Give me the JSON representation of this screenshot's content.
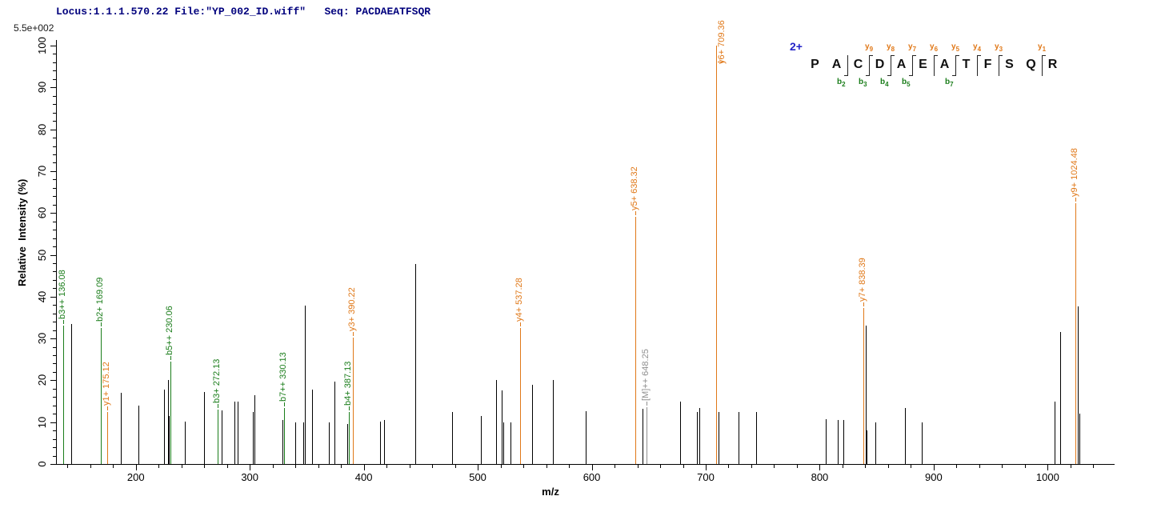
{
  "header": {
    "locus_line": "Locus:1.1.1.570.22 File:\"YP_002_ID.wiff\"   Seq: PACDAEATFSQR",
    "scale_label": "5.5e+002"
  },
  "axes": {
    "x_label": "m/z",
    "y_label": "Relative  Intensity (%)"
  },
  "peptide": {
    "charge_label": "2+",
    "sequence": "PACDAEATFSQR",
    "residues": [
      "P",
      "A",
      "C",
      "D",
      "A",
      "E",
      "A",
      "T",
      "F",
      "S",
      "Q",
      "R"
    ],
    "cleavages": [
      {
        "after_residue": 2,
        "b_ion": "b2",
        "y_ion": null
      },
      {
        "after_residue": 3,
        "b_ion": "b3",
        "y_ion": "y9"
      },
      {
        "after_residue": 4,
        "b_ion": "b4",
        "y_ion": "y8"
      },
      {
        "after_residue": 5,
        "b_ion": "b5",
        "y_ion": "y7"
      },
      {
        "after_residue": 6,
        "b_ion": null,
        "y_ion": "y6"
      },
      {
        "after_residue": 7,
        "b_ion": "b7",
        "y_ion": "y5"
      },
      {
        "after_residue": 8,
        "b_ion": null,
        "y_ion": "y4"
      },
      {
        "after_residue": 9,
        "b_ion": null,
        "y_ion": "y3"
      },
      {
        "after_residue": 11,
        "b_ion": null,
        "y_ion": "y1"
      }
    ]
  },
  "colors": {
    "b_ion_green": "#1a7d1a",
    "y_ion_orange": "#e07818",
    "precursor_gray": "#8f8f8f",
    "peak_black": "#000000",
    "header_navy": "#00007d",
    "charge_blue": "#2323c8"
  },
  "chart_data": {
    "type": "bar",
    "title": "Locus:1.1.1.570.22 File:\"YP_002_ID.wiff\"   Seq: PACDAEATFSQR",
    "xlabel": "m/z",
    "ylabel": "Relative  Intensity (%)",
    "absolute_intensity_scale": "5.5e+002",
    "xlim": [
      130,
      1058
    ],
    "ylim": [
      0,
      100
    ],
    "grid": false,
    "x_major_ticks": [
      200,
      300,
      400,
      500,
      600,
      700,
      800,
      900,
      1000
    ],
    "x_minor_tick_step": 20,
    "y_major_ticks": [
      0,
      10,
      20,
      30,
      40,
      50,
      60,
      70,
      80,
      90,
      100
    ],
    "y_minor_tick_step": 2,
    "peaks": [
      {
        "mz": 136.08,
        "intensity": 33.0,
        "series": "b",
        "label": "b3++ 136.08"
      },
      {
        "mz": 143.1,
        "intensity": 33.5,
        "series": "unassigned"
      },
      {
        "mz": 169.09,
        "intensity": 32.5,
        "series": "b",
        "label": "b2+ 169.09"
      },
      {
        "mz": 175.12,
        "intensity": 12.4,
        "series": "y",
        "label": "y1+ 175.12"
      },
      {
        "mz": 186.7,
        "intensity": 17.0,
        "series": "unassigned"
      },
      {
        "mz": 202.3,
        "intensity": 14.0,
        "series": "unassigned"
      },
      {
        "mz": 224.8,
        "intensity": 17.7,
        "series": "unassigned"
      },
      {
        "mz": 228.1,
        "intensity": 20.0,
        "series": "unassigned"
      },
      {
        "mz": 229.3,
        "intensity": 11.5,
        "series": "unassigned"
      },
      {
        "mz": 230.06,
        "intensity": 24.5,
        "series": "b",
        "label": "b5++ 230.06"
      },
      {
        "mz": 242.8,
        "intensity": 10.2,
        "series": "unassigned"
      },
      {
        "mz": 259.9,
        "intensity": 17.3,
        "series": "unassigned"
      },
      {
        "mz": 272.13,
        "intensity": 13.0,
        "series": "b",
        "label": "b3+ 272.13"
      },
      {
        "mz": 275.2,
        "intensity": 12.8,
        "series": "unassigned"
      },
      {
        "mz": 286.6,
        "intensity": 15.0,
        "series": "unassigned"
      },
      {
        "mz": 289.0,
        "intensity": 14.9,
        "series": "unassigned"
      },
      {
        "mz": 302.6,
        "intensity": 12.4,
        "series": "unassigned"
      },
      {
        "mz": 304.4,
        "intensity": 16.4,
        "series": "unassigned"
      },
      {
        "mz": 328.8,
        "intensity": 10.5,
        "series": "unassigned"
      },
      {
        "mz": 330.13,
        "intensity": 13.4,
        "series": "b",
        "label": "b7++ 330.13"
      },
      {
        "mz": 340.0,
        "intensity": 9.9,
        "series": "unassigned"
      },
      {
        "mz": 346.6,
        "intensity": 10.0,
        "series": "unassigned"
      },
      {
        "mz": 348.2,
        "intensity": 37.9,
        "series": "unassigned"
      },
      {
        "mz": 354.7,
        "intensity": 17.8,
        "series": "unassigned"
      },
      {
        "mz": 369.3,
        "intensity": 9.9,
        "series": "unassigned"
      },
      {
        "mz": 374.2,
        "intensity": 19.7,
        "series": "unassigned"
      },
      {
        "mz": 385.6,
        "intensity": 9.6,
        "series": "unassigned"
      },
      {
        "mz": 387.13,
        "intensity": 12.4,
        "series": "b",
        "label": "b4+ 387.13"
      },
      {
        "mz": 390.22,
        "intensity": 30.3,
        "series": "y",
        "label": "y3+ 390.22"
      },
      {
        "mz": 414.2,
        "intensity": 10.1,
        "series": "unassigned"
      },
      {
        "mz": 418.0,
        "intensity": 10.6,
        "series": "unassigned"
      },
      {
        "mz": 445.3,
        "intensity": 47.8,
        "series": "unassigned"
      },
      {
        "mz": 477.6,
        "intensity": 12.5,
        "series": "unassigned"
      },
      {
        "mz": 503.0,
        "intensity": 11.5,
        "series": "unassigned"
      },
      {
        "mz": 516.3,
        "intensity": 20.1,
        "series": "unassigned"
      },
      {
        "mz": 520.8,
        "intensity": 17.6,
        "series": "unassigned"
      },
      {
        "mz": 522.2,
        "intensity": 9.9,
        "series": "unassigned"
      },
      {
        "mz": 528.5,
        "intensity": 9.9,
        "series": "unassigned"
      },
      {
        "mz": 537.28,
        "intensity": 32.5,
        "series": "y",
        "label": "y4+ 537.28"
      },
      {
        "mz": 547.9,
        "intensity": 19.0,
        "series": "unassigned"
      },
      {
        "mz": 565.8,
        "intensity": 20.1,
        "series": "unassigned"
      },
      {
        "mz": 594.5,
        "intensity": 12.6,
        "series": "unassigned"
      },
      {
        "mz": 638.32,
        "intensity": 59.0,
        "series": "y",
        "label": "y5+ 638.32"
      },
      {
        "mz": 644.4,
        "intensity": 13.1,
        "series": "unassigned"
      },
      {
        "mz": 648.25,
        "intensity": 13.5,
        "series": "precursor",
        "label": "[M]++ 648.25"
      },
      {
        "mz": 677.8,
        "intensity": 15.0,
        "series": "unassigned"
      },
      {
        "mz": 692.4,
        "intensity": 12.4,
        "series": "unassigned"
      },
      {
        "mz": 694.3,
        "intensity": 13.4,
        "series": "unassigned"
      },
      {
        "mz": 709.36,
        "intensity": 100.0,
        "series": "y",
        "label": "y6+ 709.36"
      },
      {
        "mz": 711.1,
        "intensity": 12.4,
        "series": "unassigned"
      },
      {
        "mz": 728.7,
        "intensity": 12.5,
        "series": "unassigned"
      },
      {
        "mz": 743.9,
        "intensity": 12.5,
        "series": "unassigned"
      },
      {
        "mz": 805.3,
        "intensity": 10.8,
        "series": "unassigned"
      },
      {
        "mz": 816.0,
        "intensity": 10.5,
        "series": "unassigned"
      },
      {
        "mz": 820.7,
        "intensity": 10.5,
        "series": "unassigned"
      },
      {
        "mz": 838.39,
        "intensity": 37.3,
        "series": "y",
        "label": "y7+ 838.39"
      },
      {
        "mz": 840.1,
        "intensity": 33.0,
        "series": "unassigned"
      },
      {
        "mz": 841.4,
        "intensity": 8.0,
        "series": "unassigned"
      },
      {
        "mz": 848.5,
        "intensity": 9.9,
        "series": "unassigned"
      },
      {
        "mz": 874.5,
        "intensity": 13.4,
        "series": "unassigned"
      },
      {
        "mz": 889.7,
        "intensity": 9.9,
        "series": "unassigned"
      },
      {
        "mz": 1006.1,
        "intensity": 15.0,
        "series": "unassigned"
      },
      {
        "mz": 1010.7,
        "intensity": 31.5,
        "series": "unassigned"
      },
      {
        "mz": 1024.48,
        "intensity": 62.4,
        "series": "y",
        "label": "y9+ 1024.48"
      },
      {
        "mz": 1026.4,
        "intensity": 37.6,
        "series": "unassigned"
      },
      {
        "mz": 1027.5,
        "intensity": 12.0,
        "series": "unassigned"
      }
    ]
  }
}
